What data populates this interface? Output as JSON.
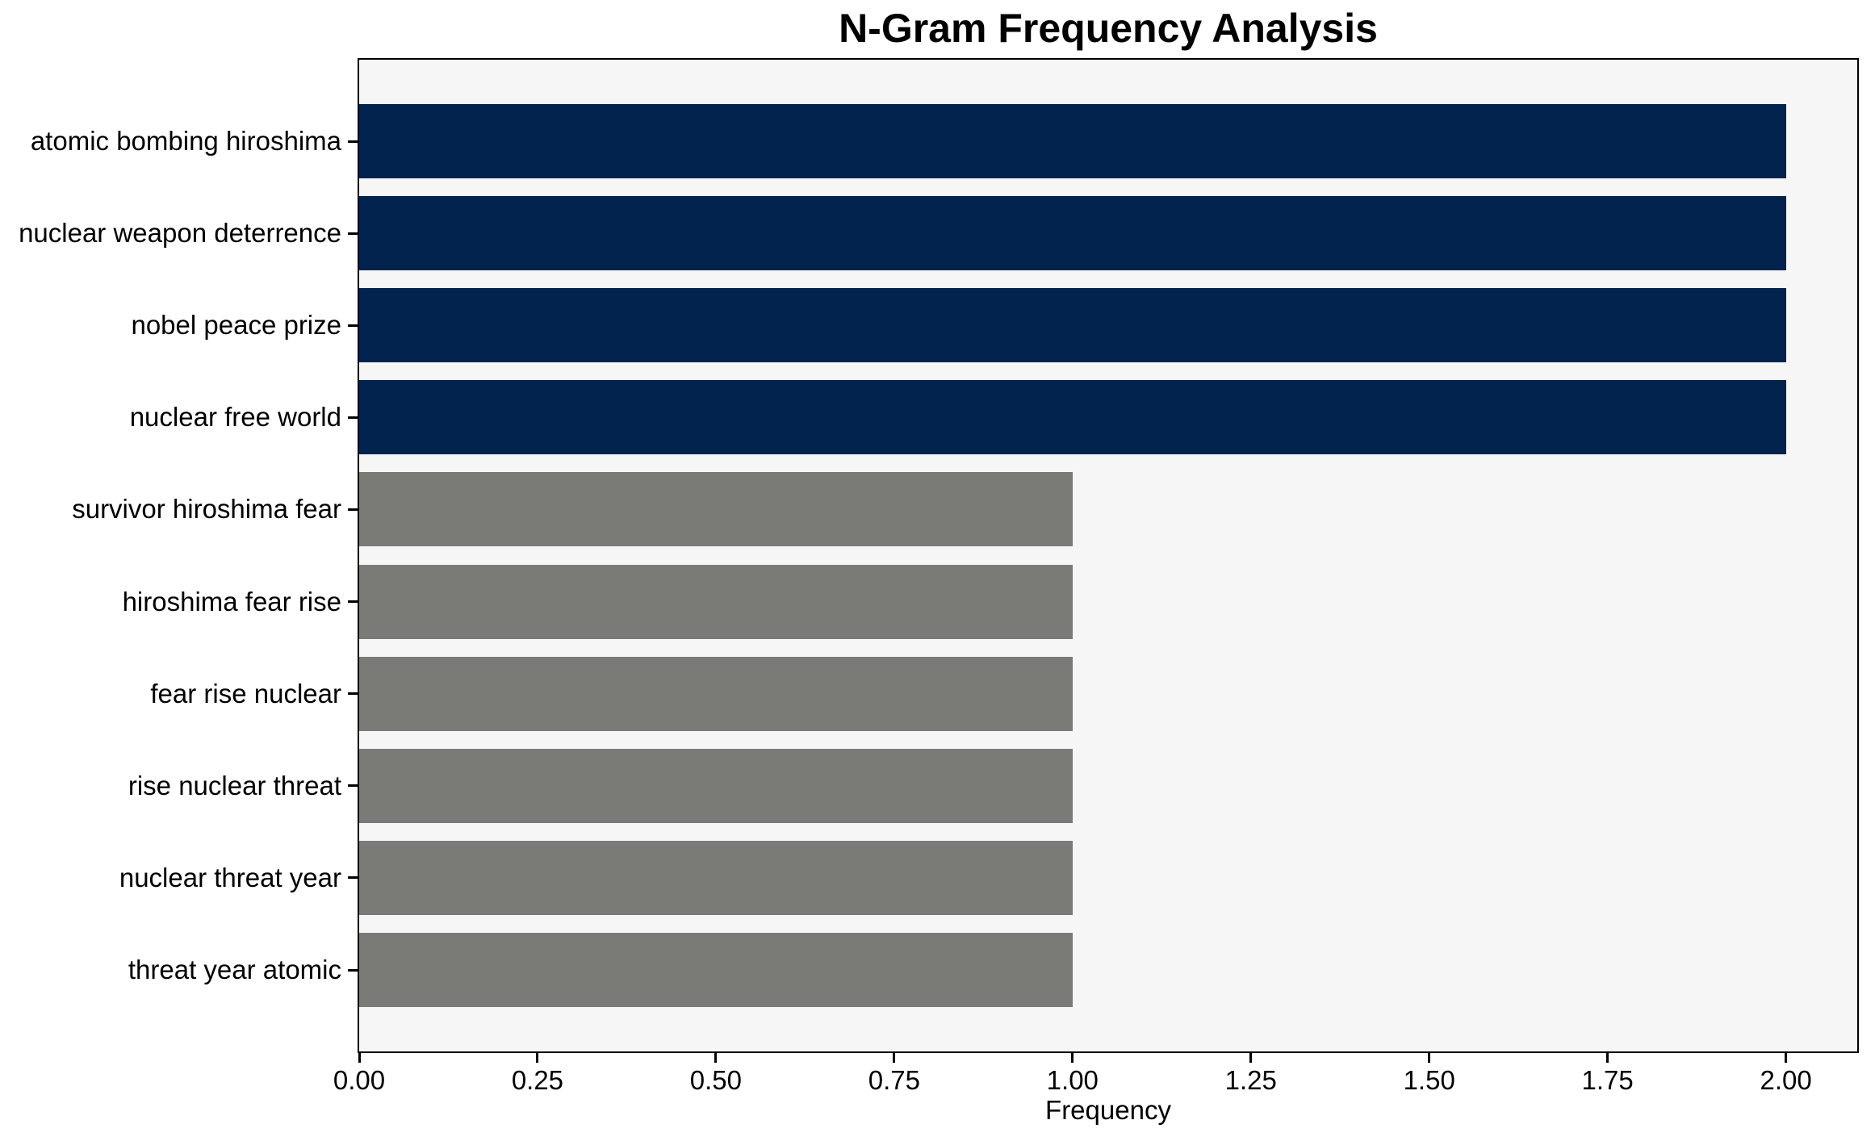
{
  "chart_data": {
    "type": "bar",
    "orientation": "horizontal",
    "title": "N-Gram Frequency Analysis",
    "xlabel": "Frequency",
    "ylabel": "",
    "categories": [
      "atomic bombing hiroshima",
      "nuclear weapon deterrence",
      "nobel peace prize",
      "nuclear free world",
      "survivor hiroshima fear",
      "hiroshima fear rise",
      "fear rise nuclear",
      "rise nuclear threat",
      "nuclear threat year",
      "threat year atomic"
    ],
    "values": [
      2,
      2,
      2,
      2,
      1,
      1,
      1,
      1,
      1,
      1
    ],
    "bar_colors": [
      "#02234E",
      "#02234E",
      "#02234E",
      "#02234E",
      "#7A7A77",
      "#7A7A77",
      "#7A7A77",
      "#7A7A77",
      "#7A7A77",
      "#7A7A77"
    ],
    "xlim": [
      0,
      2.1
    ],
    "xticks": {
      "values": [
        0,
        0.25,
        0.5,
        0.75,
        1.0,
        1.25,
        1.5,
        1.75,
        2.0
      ],
      "labels": [
        "0.00",
        "0.25",
        "0.50",
        "0.75",
        "1.00",
        "1.25",
        "1.50",
        "1.75",
        "2.00"
      ]
    },
    "grid": false,
    "legend": false,
    "colors": {
      "highlight": "#02234E",
      "default": "#7A7A77",
      "plot_background": "#F6F6F6",
      "figure_background": "#FFFFFF",
      "spine": "#000000"
    }
  }
}
